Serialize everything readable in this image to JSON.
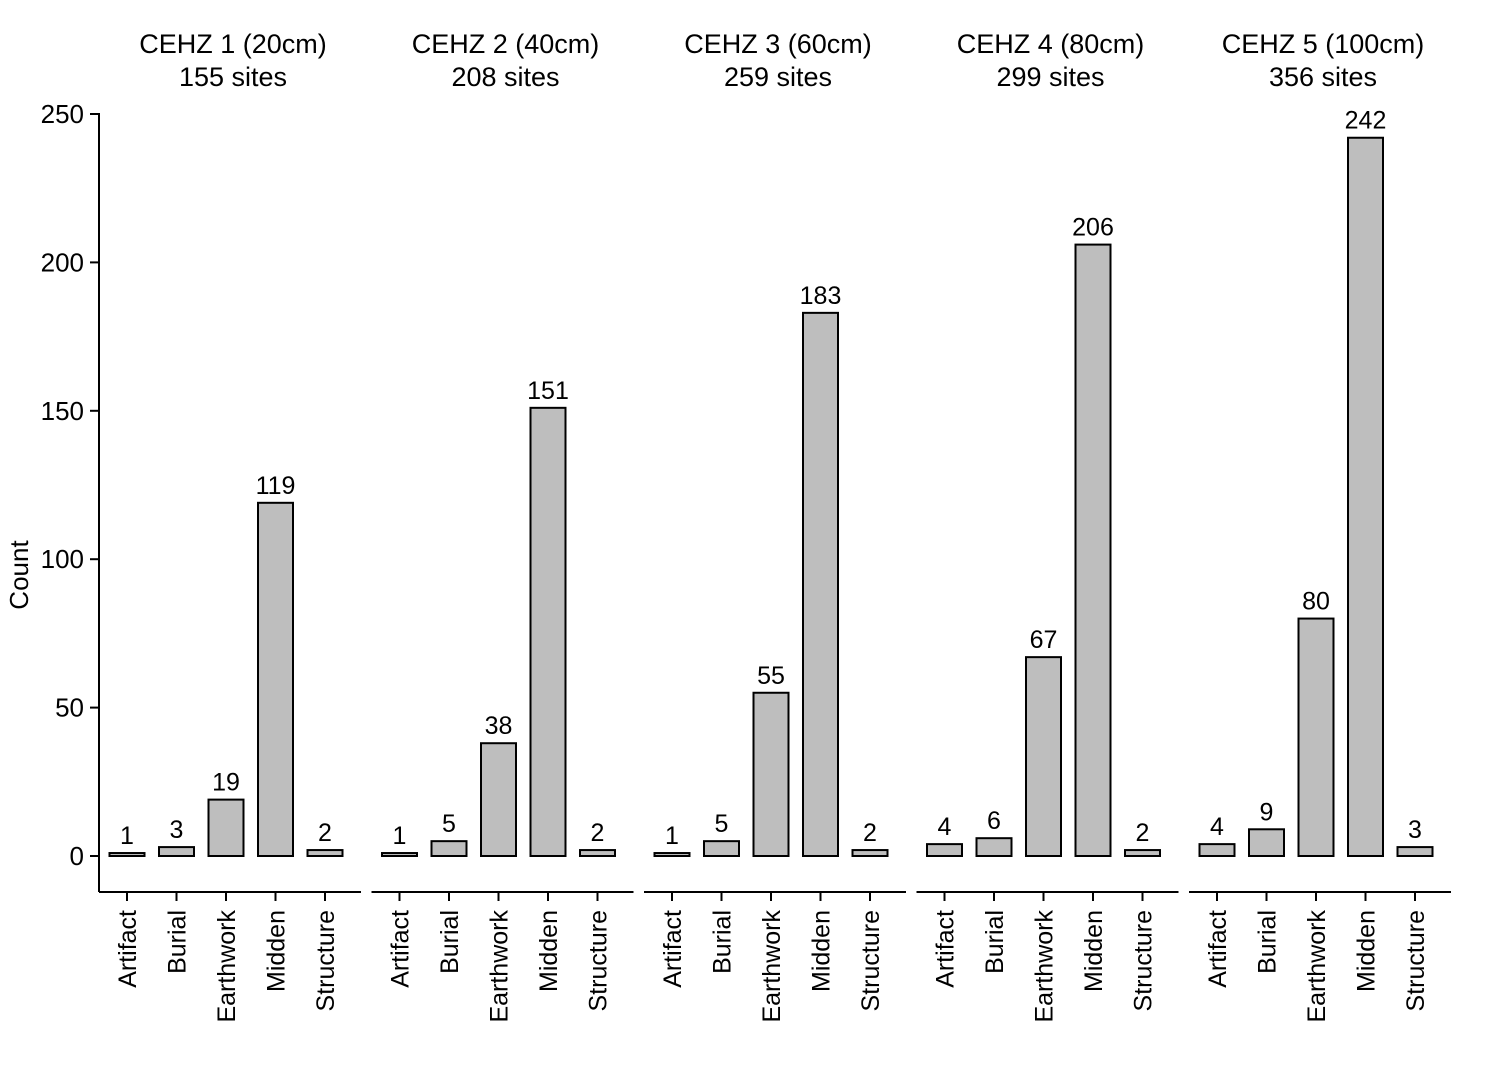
{
  "chart_data": {
    "type": "bar",
    "ylabel": "Count",
    "ylim": [
      0,
      250
    ],
    "yticks": [
      0,
      50,
      100,
      150,
      200,
      250
    ],
    "categories": [
      "Artifact",
      "Burial",
      "Earthwork",
      "Midden",
      "Structure"
    ],
    "bar_color": "#bebebe",
    "panels": [
      {
        "title": "CEHZ 1 (20cm)",
        "subtitle": "155 sites",
        "values": [
          1,
          3,
          19,
          119,
          2
        ]
      },
      {
        "title": "CEHZ 2 (40cm)",
        "subtitle": "208 sites",
        "values": [
          1,
          5,
          38,
          151,
          2
        ]
      },
      {
        "title": "CEHZ 3 (60cm)",
        "subtitle": "259 sites",
        "values": [
          1,
          5,
          55,
          183,
          2
        ]
      },
      {
        "title": "CEHZ 4 (80cm)",
        "subtitle": "299 sites",
        "values": [
          4,
          6,
          67,
          206,
          2
        ]
      },
      {
        "title": "CEHZ 5 (100cm)",
        "subtitle": "356 sites",
        "values": [
          4,
          9,
          80,
          242,
          3
        ]
      }
    ]
  }
}
